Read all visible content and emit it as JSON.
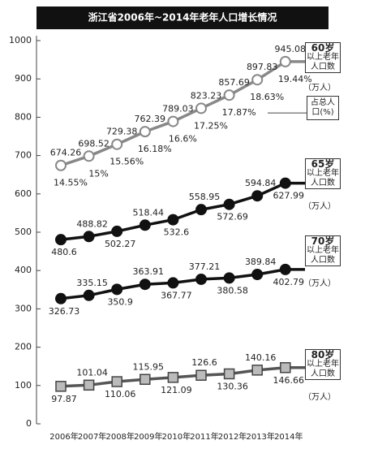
{
  "chart_data": {
    "type": "line",
    "title": "浙江省2006年~2014年老年人口增长情况",
    "categories": [
      "2006年",
      "2007年",
      "2008年",
      "2009年",
      "2010年",
      "2011年",
      "2012年",
      "2013年",
      "2014年"
    ],
    "ylim": [
      0,
      1000
    ],
    "yticks": [
      0,
      100,
      200,
      300,
      400,
      500,
      600,
      700,
      800,
      900,
      1000
    ],
    "unit": "（万人）",
    "sublabel": "以上老年人口数",
    "series": [
      {
        "name": "60岁",
        "color": "#888888",
        "marker": "open-circle",
        "values": [
          674.26,
          698.52,
          729.38,
          762.39,
          789.03,
          823.23,
          857.69,
          897.83,
          945.08
        ]
      },
      {
        "name": "65岁",
        "color": "#111111",
        "marker": "circle",
        "values": [
          480.6,
          488.82,
          502.27,
          518.44,
          532.6,
          558.95,
          572.69,
          594.84,
          627.99
        ]
      },
      {
        "name": "70岁",
        "color": "#111111",
        "marker": "circle",
        "values": [
          326.73,
          335.15,
          350.9,
          363.91,
          367.77,
          377.21,
          380.58,
          389.84,
          402.79
        ]
      },
      {
        "name": "80岁",
        "color": "#555555",
        "marker": "square",
        "values": [
          97.87,
          101.04,
          110.06,
          115.95,
          121.09,
          126.6,
          130.36,
          140.16,
          146.66
        ]
      }
    ],
    "share": {
      "name": "占总人口(%)",
      "values": [
        14.55,
        15,
        15.56,
        16.18,
        16.6,
        17.25,
        17.87,
        18.63,
        19.44
      ],
      "value_labels": [
        "14.55%",
        "15%",
        "15.56%",
        "16.18%",
        "16.6%",
        "17.25%",
        "17.87%",
        "18.63%",
        "19.44%"
      ]
    }
  }
}
